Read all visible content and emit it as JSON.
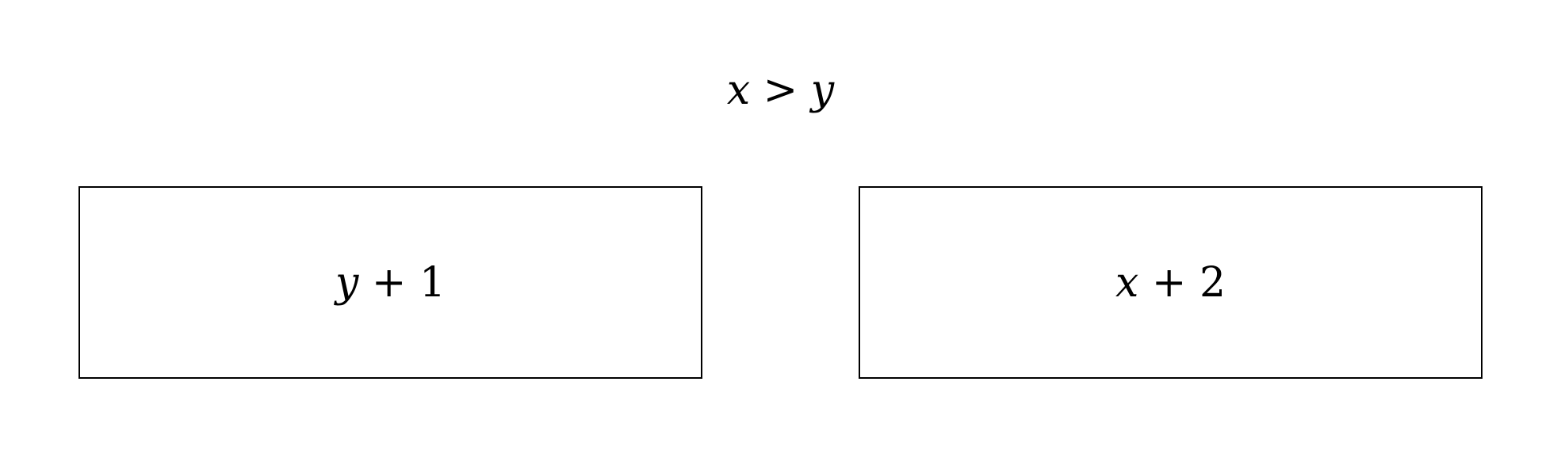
{
  "condition": {
    "left": "x",
    "operator": ">",
    "right": "y"
  },
  "options": [
    {
      "variable": "y",
      "operator": "+",
      "constant": "1"
    },
    {
      "variable": "x",
      "operator": "+",
      "constant": "2"
    }
  ]
}
